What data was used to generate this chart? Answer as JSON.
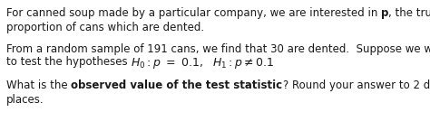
{
  "background_color": "#ffffff",
  "figsize": [
    4.74,
    1.45
  ],
  "dpi": 100,
  "font_size": 8.5,
  "text_color": "#1a1a1a",
  "line1_normal1": "For canned soup made by a particular company, we are interested in ",
  "line1_bold": "p",
  "line1_normal2": ", the true",
  "line2": "proportion of cans which are dented.",
  "line3": "From a random sample of 191 cans, we find that 30 are dented.  Suppose we wish",
  "line4_normal": "to test the hypotheses ",
  "line4_math": "$H_0 : p\\ =\\ 0.1,\\ \\ H_1 : p \\neq 0.1$",
  "line5_normal1": "What is the ",
  "line5_bold": "observed value of the test statistic",
  "line5_normal2": "? Round your answer to 2 decimal",
  "line6": "places."
}
